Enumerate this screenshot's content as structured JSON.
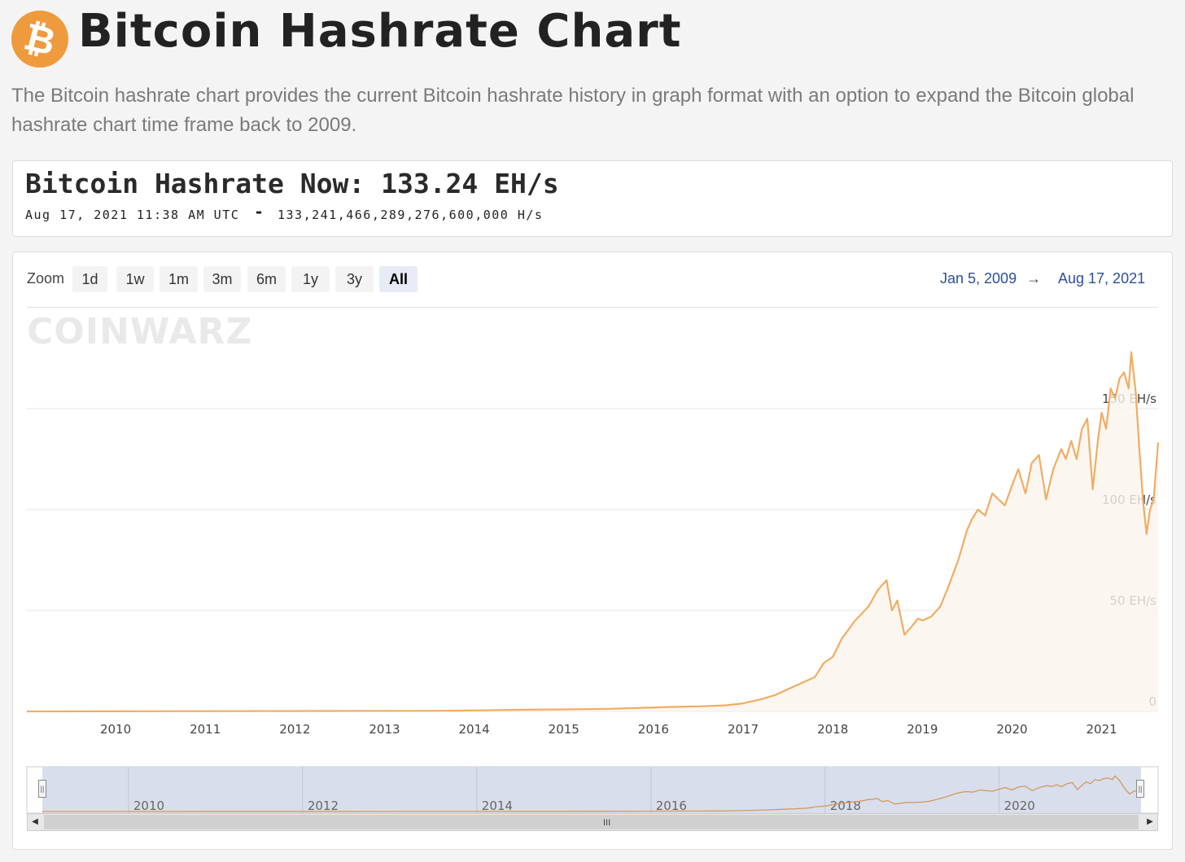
{
  "header": {
    "logo_symbol": "₿",
    "title": "Bitcoin Hashrate Chart",
    "description": "The Bitcoin hashrate chart provides the current Bitcoin hashrate history in graph format with an option to expand the Bitcoin global hashrate chart time frame back to 2009.",
    "accent_color": "#ef9a3c"
  },
  "now": {
    "title": "Bitcoin Hashrate Now: 133.24 EH/s",
    "timestamp": "Aug 17, 2021 11:38 AM UTC",
    "separator": "-",
    "hashes": "133,241,466,289,276,600,000 H/s"
  },
  "toolbar": {
    "zoom_label": "Zoom",
    "zoom_buttons": [
      "1d",
      "1w",
      "1m",
      "3m",
      "6m",
      "1y",
      "3y",
      "All"
    ],
    "active_zoom": "All",
    "range_from": "Jan 5, 2009",
    "range_arrow": "→",
    "range_to": "Aug 17, 2021"
  },
  "watermark": "COINWARZ",
  "chart_data": {
    "type": "area",
    "title": "",
    "xlabel": "",
    "ylabel": "",
    "x_unit": "year",
    "y_unit": "EH/s",
    "xlim": [
      2009.01,
      2021.63
    ],
    "ylim": [
      0,
      200
    ],
    "y_ticks": [
      0,
      50,
      100,
      150
    ],
    "y_tick_labels": [
      "0",
      "50 EH/s",
      "100 EH/s",
      "150 EH/s"
    ],
    "x_ticks": [
      2010,
      2011,
      2012,
      2013,
      2014,
      2015,
      2016,
      2017,
      2018,
      2019,
      2020,
      2021
    ],
    "x_tick_labels": [
      "2010",
      "2011",
      "2012",
      "2013",
      "2014",
      "2015",
      "2016",
      "2017",
      "2018",
      "2019",
      "2020",
      "2021"
    ],
    "grid": true,
    "line_color": "#f0ad63",
    "series": [
      {
        "x": [
          2009.01,
          2013.5,
          2014.0,
          2014.5,
          2015.0,
          2015.5,
          2015.9,
          2016.2,
          2016.5,
          2016.8,
          2017.0,
          2017.2,
          2017.35,
          2017.5,
          2017.65,
          2017.8,
          2017.9,
          2018.0,
          2018.1,
          2018.25,
          2018.4,
          2018.5,
          2018.6,
          2018.66,
          2018.72,
          2018.8,
          2018.88,
          2018.95,
          2019.0,
          2019.1,
          2019.2,
          2019.3,
          2019.4,
          2019.5,
          2019.55,
          2019.62,
          2019.7,
          2019.78,
          2019.85,
          2019.92,
          2020.0,
          2020.07,
          2020.15,
          2020.22,
          2020.3,
          2020.38,
          2020.46,
          2020.55,
          2020.6,
          2020.66,
          2020.72,
          2020.78,
          2020.84,
          2020.9,
          2020.96,
          2021.0,
          2021.05,
          2021.1,
          2021.15,
          2021.2,
          2021.25,
          2021.3,
          2021.33,
          2021.38,
          2021.42,
          2021.46,
          2021.5,
          2021.54,
          2021.58,
          2021.63
        ],
        "y": [
          0.0,
          0.3,
          0.5,
          0.8,
          1.0,
          1.3,
          1.8,
          2.2,
          2.5,
          3.0,
          4.0,
          6.0,
          8.0,
          11.0,
          14.0,
          17.0,
          24.0,
          27.0,
          36.0,
          45.0,
          52.0,
          60.0,
          65.0,
          50.0,
          55.0,
          38.0,
          42.0,
          46.0,
          45.0,
          47.0,
          52.0,
          63.0,
          75.0,
          90.0,
          95.0,
          100.0,
          97.0,
          108.0,
          105.0,
          102.0,
          112.0,
          120.0,
          108.0,
          123.0,
          127.0,
          105.0,
          120.0,
          130.0,
          125.0,
          134.0,
          125.0,
          140.0,
          145.0,
          110.0,
          135.0,
          148.0,
          140.0,
          160.0,
          155.0,
          165.0,
          168.0,
          160.0,
          178.0,
          158.0,
          130.0,
          105.0,
          88.0,
          100.0,
          105.0,
          133.24
        ]
      }
    ]
  },
  "navigator": {
    "labels": [
      "2010",
      "2012",
      "2014",
      "2016",
      "2018",
      "2020"
    ],
    "grip": "III",
    "left_arrow": "◀",
    "right_arrow": "▶",
    "handle_glyph": "||"
  }
}
